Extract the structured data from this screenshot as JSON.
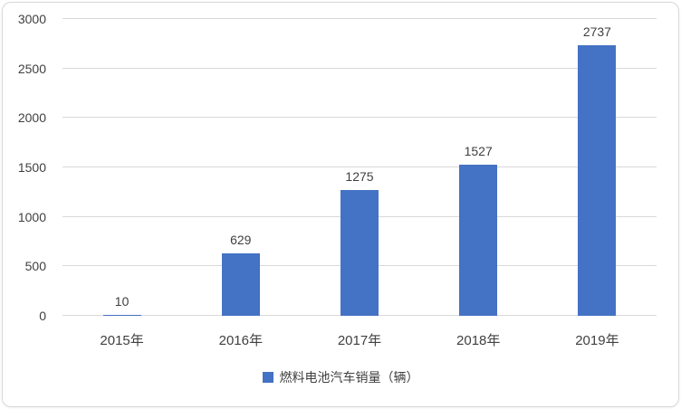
{
  "chart_data": {
    "type": "bar",
    "categories": [
      "2015年",
      "2016年",
      "2017年",
      "2018年",
      "2019年"
    ],
    "values": [
      10,
      629,
      1275,
      1527,
      2737
    ],
    "title": "",
    "xlabel": "",
    "ylabel": "",
    "ylim": [
      0,
      3000
    ],
    "yticks": [
      0,
      500,
      1000,
      1500,
      2000,
      2500,
      3000
    ],
    "grid": "horizontal",
    "legend": "燃料电池汽车销量（辆）",
    "legend_position": "bottom",
    "bar_color": "#4472c4",
    "gridline_color": "#d9d9d9",
    "text_color": "#404040"
  }
}
